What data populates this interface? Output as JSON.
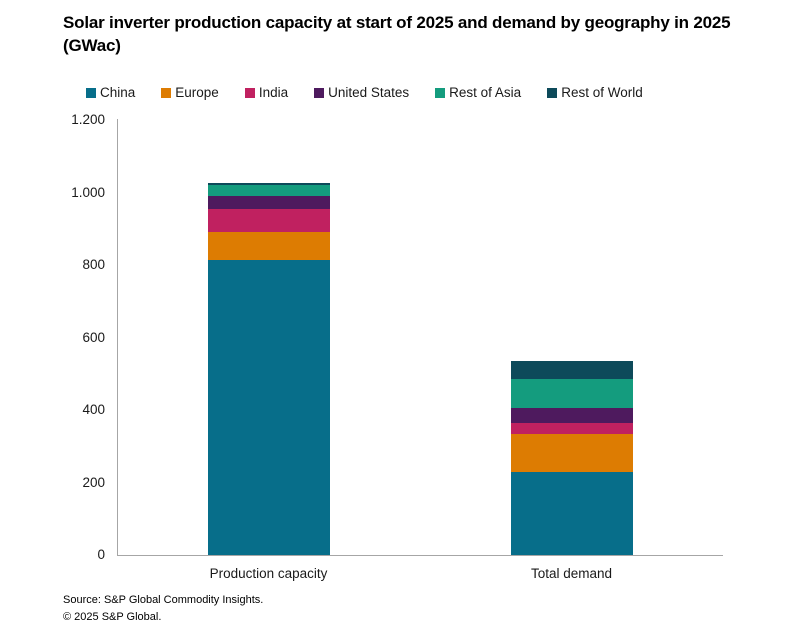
{
  "title": "Solar inverter production capacity at start of 2025 and demand by geography in 2025 (GWac)",
  "source": {
    "line1": "Source: S&P Global Commodity Insights.",
    "line2": "© 2025 S&P Global."
  },
  "chart_data": {
    "type": "bar",
    "stacked": true,
    "title": "Solar inverter production capacity at start of 2025 and demand by geography in 2025 (GWac)",
    "xlabel": "",
    "ylabel": "",
    "unit": "GWac",
    "categories": [
      "Production capacity",
      "Total demand"
    ],
    "series": [
      {
        "name": "China",
        "color": "#076e8a",
        "values": [
          815,
          230
        ]
      },
      {
        "name": "Europe",
        "color": "#dd7c02",
        "values": [
          75,
          105
        ]
      },
      {
        "name": "India",
        "color": "#c02160",
        "values": [
          65,
          30
        ]
      },
      {
        "name": "United States",
        "color": "#4e1a5e",
        "values": [
          35,
          40
        ]
      },
      {
        "name": "Rest of Asia",
        "color": "#149c7e",
        "values": [
          30,
          80
        ]
      },
      {
        "name": "Rest of World",
        "color": "#0d4a5a",
        "values": [
          5,
          50
        ]
      }
    ],
    "totals": [
      1025,
      535
    ],
    "ylim": [
      0,
      1200
    ],
    "ytick_interval": 200,
    "ytick_labels": [
      "0",
      "200",
      "400",
      "600",
      "800",
      "1.000",
      "1.200"
    ],
    "legend_position": "top",
    "grid": false
  }
}
